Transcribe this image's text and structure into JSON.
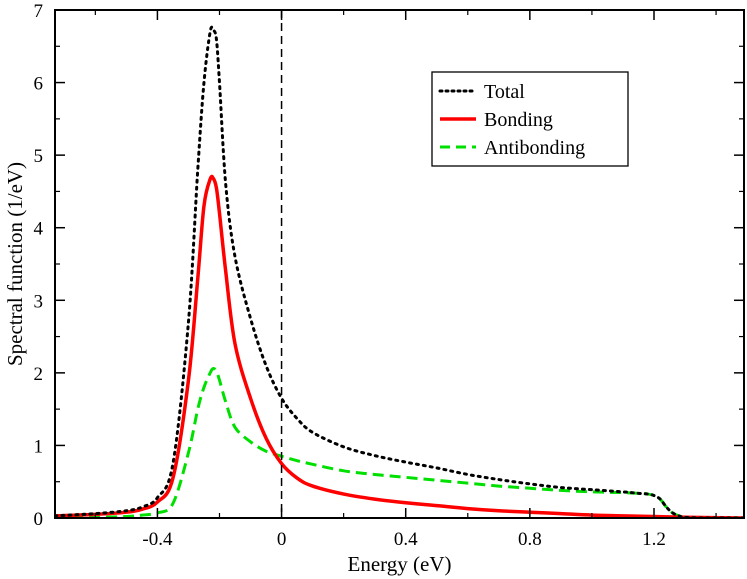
{
  "chart_data": {
    "type": "line",
    "title": "",
    "xlabel": "Energy (eV)",
    "ylabel": "Spectral function (1/eV)",
    "xlim": [
      -0.73,
      1.49
    ],
    "ylim": [
      0,
      7
    ],
    "xticks": [
      -0.4,
      0,
      0.4,
      0.8,
      1.2
    ],
    "xtick_labels": [
      "-0.4",
      "0",
      "0.4",
      "0.8",
      "1.2"
    ],
    "yticks": [
      0,
      1,
      2,
      3,
      4,
      5,
      6,
      7
    ],
    "ytick_labels": [
      "0",
      "1",
      "2",
      "3",
      "4",
      "5",
      "6",
      "7"
    ],
    "grid": false,
    "legend_position": "top-right",
    "reference_line": {
      "x": 0,
      "style": "dashed",
      "color": "#000000"
    },
    "series": [
      {
        "name": "Total",
        "color": "#000000",
        "style": "dotted",
        "x": [
          -0.73,
          -0.6,
          -0.5,
          -0.45,
          -0.4,
          -0.35,
          -0.3,
          -0.27,
          -0.25,
          -0.23,
          -0.22,
          -0.21,
          -0.2,
          -0.18,
          -0.15,
          -0.1,
          -0.05,
          0,
          0.05,
          0.1,
          0.2,
          0.3,
          0.4,
          0.5,
          0.6,
          0.7,
          0.8,
          0.9,
          1.0,
          1.1,
          1.15,
          1.18,
          1.2,
          1.22,
          1.24,
          1.26,
          1.28,
          1.3,
          1.35,
          1.4,
          1.49
        ],
        "values": [
          0.03,
          0.06,
          0.1,
          0.15,
          0.28,
          0.75,
          2.7,
          4.8,
          6.0,
          6.7,
          6.72,
          6.6,
          6.0,
          4.6,
          3.6,
          2.75,
          2.1,
          1.65,
          1.37,
          1.18,
          0.98,
          0.86,
          0.77,
          0.69,
          0.6,
          0.53,
          0.47,
          0.42,
          0.39,
          0.36,
          0.34,
          0.33,
          0.31,
          0.26,
          0.15,
          0.07,
          0.03,
          0.01,
          0.0,
          0.0,
          0.0
        ]
      },
      {
        "name": "Bonding",
        "color": "#ff0000",
        "style": "solid",
        "x": [
          -0.73,
          -0.6,
          -0.5,
          -0.45,
          -0.4,
          -0.35,
          -0.3,
          -0.27,
          -0.25,
          -0.23,
          -0.22,
          -0.21,
          -0.2,
          -0.18,
          -0.15,
          -0.1,
          -0.05,
          0,
          0.05,
          0.1,
          0.2,
          0.3,
          0.4,
          0.5,
          0.6,
          0.7,
          0.8,
          0.9,
          1.0,
          1.1,
          1.2,
          1.3,
          1.49
        ],
        "values": [
          0.03,
          0.05,
          0.08,
          0.12,
          0.22,
          0.55,
          1.9,
          3.3,
          4.3,
          4.67,
          4.68,
          4.55,
          4.2,
          3.4,
          2.4,
          1.65,
          1.1,
          0.75,
          0.55,
          0.44,
          0.33,
          0.26,
          0.21,
          0.17,
          0.13,
          0.1,
          0.08,
          0.06,
          0.04,
          0.03,
          0.02,
          0.01,
          0.0
        ]
      },
      {
        "name": "Antibonding",
        "color": "#00e000",
        "style": "dashed",
        "x": [
          -0.73,
          -0.6,
          -0.5,
          -0.45,
          -0.4,
          -0.35,
          -0.3,
          -0.27,
          -0.25,
          -0.23,
          -0.22,
          -0.21,
          -0.2,
          -0.18,
          -0.15,
          -0.1,
          -0.05,
          0,
          0.05,
          0.1,
          0.2,
          0.3,
          0.4,
          0.5,
          0.6,
          0.7,
          0.8,
          0.9,
          1.0,
          1.1,
          1.15,
          1.18,
          1.2,
          1.22,
          1.24,
          1.26,
          1.28,
          1.3,
          1.35,
          1.4,
          1.49
        ],
        "values": [
          0.0,
          0.01,
          0.02,
          0.04,
          0.07,
          0.2,
          0.9,
          1.5,
          1.8,
          2.0,
          2.06,
          2.02,
          1.9,
          1.6,
          1.25,
          1.05,
          0.92,
          0.85,
          0.79,
          0.74,
          0.65,
          0.6,
          0.56,
          0.52,
          0.48,
          0.44,
          0.41,
          0.38,
          0.36,
          0.35,
          0.34,
          0.33,
          0.31,
          0.26,
          0.15,
          0.07,
          0.03,
          0.01,
          0.0,
          0.0,
          0.0
        ]
      }
    ]
  }
}
